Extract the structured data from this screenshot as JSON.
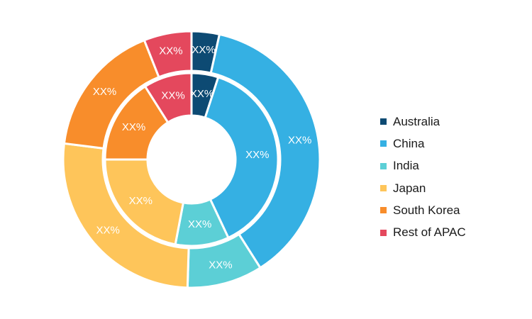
{
  "chart_data": {
    "type": "donut",
    "title": "",
    "categories": [
      "Australia",
      "China",
      "India",
      "Japan",
      "South Korea",
      "Rest of APAC"
    ],
    "colors": [
      "#0d4a73",
      "#35b0e3",
      "#5ccfd6",
      "#fec55a",
      "#f88d2b",
      "#e4485d"
    ],
    "series": [
      {
        "ring": "outer",
        "values": [
          3.5,
          37.5,
          9.5,
          26.5,
          17.0,
          6.0
        ],
        "labels": [
          "XX%",
          "XX%",
          "XX%",
          "XX%",
          "XX%",
          "XX%"
        ]
      },
      {
        "ring": "inner",
        "values": [
          5.0,
          38.0,
          10.0,
          22.0,
          16.0,
          9.0
        ],
        "labels": [
          "XX%",
          "XX%",
          "XX%",
          "XX%",
          "XX%",
          "XX%"
        ]
      }
    ],
    "legend": {
      "position": "right",
      "items": [
        "Australia",
        "China",
        "India",
        "Japan",
        "South Korea",
        "Rest of APAC"
      ]
    }
  }
}
